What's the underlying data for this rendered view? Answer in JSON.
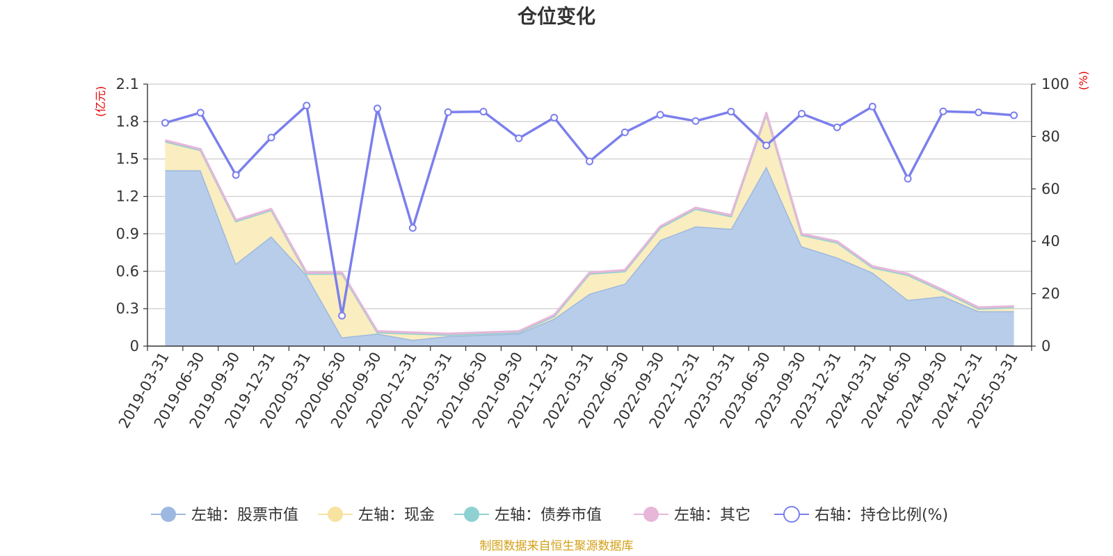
{
  "chart_data": {
    "type": "area",
    "title": "仓位变化",
    "left_axis_unit": "(亿元)",
    "right_axis_unit": "(%)",
    "categories": [
      "2019-03-31",
      "2019-06-30",
      "2019-09-30",
      "2019-12-31",
      "2020-03-31",
      "2020-06-30",
      "2020-09-30",
      "2020-12-31",
      "2021-03-31",
      "2021-06-30",
      "2021-09-30",
      "2021-12-31",
      "2022-03-31",
      "2022-06-30",
      "2022-09-30",
      "2022-12-31",
      "2023-03-31",
      "2023-06-30",
      "2023-09-30",
      "2023-12-31",
      "2024-03-31",
      "2024-06-30",
      "2024-09-30",
      "2024-12-31",
      "2025-03-31"
    ],
    "left_ylim": [
      0,
      2.1
    ],
    "left_ticks": [
      "0",
      "0.3",
      "0.6",
      "0.9",
      "1.2",
      "1.5",
      "1.8",
      "2.1"
    ],
    "right_ylim": [
      0,
      100
    ],
    "right_ticks": [
      "0",
      "20",
      "40",
      "60",
      "80",
      "100"
    ],
    "grid": true,
    "legend_position": "bottom-center",
    "series": [
      {
        "name": "左轴：股票市值",
        "axis": "left",
        "stack": true,
        "color": "#9db8e0",
        "fill": "#b8cdea",
        "values": [
          1.41,
          1.41,
          0.66,
          0.88,
          0.57,
          0.07,
          0.1,
          0.05,
          0.08,
          0.09,
          0.1,
          0.22,
          0.42,
          0.5,
          0.85,
          0.96,
          0.94,
          1.44,
          0.8,
          0.71,
          0.59,
          0.37,
          0.4,
          0.28,
          0.28
        ]
      },
      {
        "name": "左轴：现金",
        "axis": "left",
        "stack": true,
        "color": "#f7e2a0",
        "fill": "#faedbf",
        "values": [
          0.23,
          0.16,
          0.34,
          0.21,
          0.01,
          0.51,
          0.01,
          0.05,
          0.01,
          0.01,
          0.01,
          0.02,
          0.16,
          0.1,
          0.1,
          0.14,
          0.1,
          0.42,
          0.09,
          0.12,
          0.04,
          0.2,
          0.04,
          0.02,
          0.03
        ]
      },
      {
        "name": "左轴：债券市值",
        "axis": "left",
        "stack": true,
        "color": "#8fd1d3",
        "fill": "#8fd1d3",
        "values": [
          0,
          0,
          0,
          0,
          0,
          0,
          0,
          0,
          0,
          0,
          0,
          0,
          0,
          0,
          0,
          0,
          0,
          0,
          0,
          0,
          0,
          0,
          0,
          0,
          0
        ]
      },
      {
        "name": "左轴：其它",
        "axis": "left",
        "stack": true,
        "color": "#e6b7d9",
        "fill": "#e6b7d9",
        "values": [
          0.01,
          0.01,
          0.01,
          0.01,
          0.01,
          0.01,
          0.01,
          0.01,
          0.01,
          0.01,
          0.01,
          0.01,
          0.01,
          0.01,
          0.01,
          0.01,
          0.01,
          0.01,
          0.01,
          0.01,
          0.01,
          0.01,
          0.01,
          0.01,
          0.01
        ]
      },
      {
        "name": "右轴：持仓比例(%)",
        "axis": "right",
        "type": "line",
        "color": "#7b7fec",
        "values": [
          85.2,
          89.1,
          65.3,
          79.6,
          91.8,
          11.6,
          90.7,
          45.1,
          89.3,
          89.5,
          79.3,
          87.2,
          70.5,
          81.6,
          88.3,
          85.9,
          89.5,
          76.6,
          88.7,
          83.5,
          91.4,
          63.9,
          89.6,
          89.2,
          88.1
        ]
      }
    ]
  },
  "source_note": "制图数据来自恒生聚源数据库"
}
